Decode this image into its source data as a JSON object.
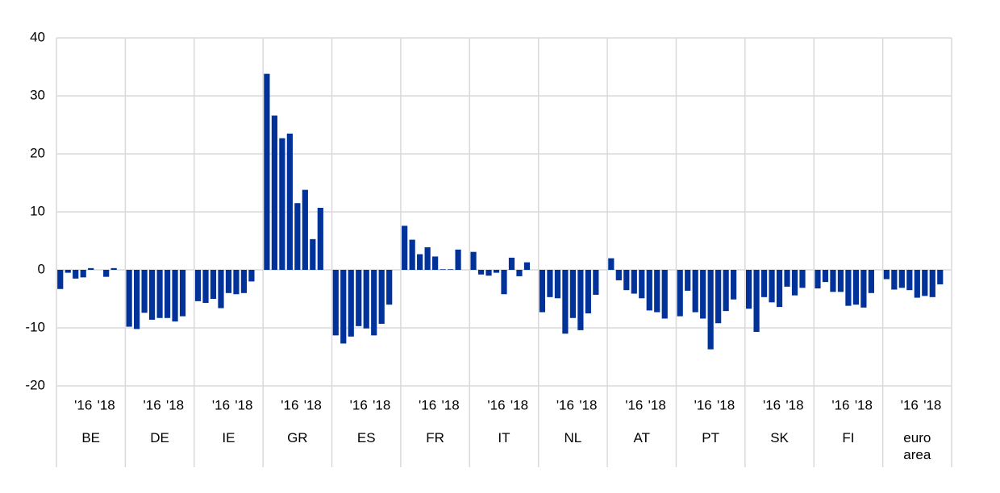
{
  "chart_data": {
    "type": "bar",
    "color": "#003299",
    "ylim": [
      -20,
      40
    ],
    "yticks": [
      -20,
      -10,
      0,
      10,
      20,
      30,
      40
    ],
    "grid": true,
    "subcategories": [
      null,
      null,
      null,
      "'16",
      null,
      null,
      "'18",
      null
    ],
    "groups": [
      {
        "name": "BE",
        "values": [
          -3.3,
          -0.5,
          -1.5,
          -1.3,
          0.3,
          0,
          -1.2,
          0.3
        ]
      },
      {
        "name": "DE",
        "values": [
          -9.8,
          -10.2,
          -7.4,
          -8.6,
          -8.3,
          -8.3,
          -8.9,
          -8.0
        ]
      },
      {
        "name": "IE",
        "values": [
          -5.4,
          -5.7,
          -5.0,
          -6.6,
          -4.0,
          -4.2,
          -4.0,
          -2.0
        ]
      },
      {
        "name": "GR",
        "values": [
          33.8,
          26.6,
          22.7,
          23.5,
          11.5,
          13.8,
          5.3,
          10.7
        ]
      },
      {
        "name": "ES",
        "values": [
          -11.3,
          -12.7,
          -11.5,
          -9.7,
          -10.1,
          -11.3,
          -9.3,
          -6.0
        ]
      },
      {
        "name": "FR",
        "values": [
          7.6,
          5.2,
          2.7,
          3.9,
          2.3,
          0.1,
          0.1,
          3.5
        ]
      },
      {
        "name": "IT",
        "values": [
          3.1,
          -0.8,
          -1.0,
          -0.5,
          -4.2,
          2.1,
          -1.1,
          1.3
        ]
      },
      {
        "name": "NL",
        "values": [
          -7.3,
          -4.7,
          -4.9,
          -11.0,
          -8.3,
          -10.4,
          -7.5,
          -4.3
        ]
      },
      {
        "name": "AT",
        "values": [
          2.0,
          -1.8,
          -3.5,
          -4.1,
          -4.9,
          -7.0,
          -7.3,
          -8.4
        ]
      },
      {
        "name": "PT",
        "values": [
          -8.0,
          -3.6,
          -7.3,
          -8.4,
          -13.7,
          -9.2,
          -7.1,
          -5.1
        ]
      },
      {
        "name": "SK",
        "values": [
          -6.7,
          -10.7,
          -4.7,
          -5.6,
          -6.4,
          -2.9,
          -4.4,
          -3.1
        ]
      },
      {
        "name": "FI",
        "values": [
          -3.2,
          -2.1,
          -3.8,
          -3.8,
          -6.2,
          -6.0,
          -6.5,
          -4.0
        ]
      },
      {
        "name": "euro area",
        "values": [
          -1.6,
          -3.4,
          -3.1,
          -3.5,
          -4.8,
          -4.5,
          -4.7,
          -2.5
        ]
      }
    ]
  }
}
